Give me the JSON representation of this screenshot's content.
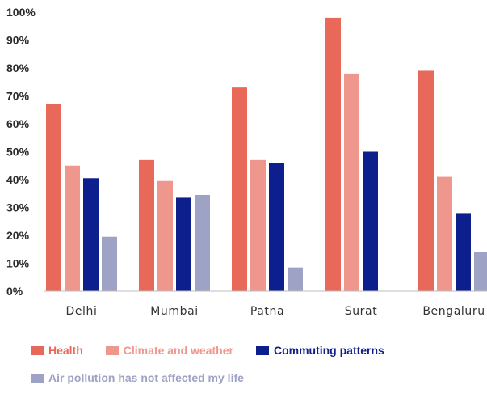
{
  "chart_data": {
    "type": "bar",
    "title": "",
    "xlabel": "",
    "ylabel": "",
    "ylim": [
      0,
      100
    ],
    "yticks": [
      "0%",
      "10%",
      "20%",
      "30%",
      "40%",
      "50%",
      "60%",
      "70%",
      "80%",
      "90%",
      "100%"
    ],
    "categories": [
      "Delhi",
      "Mumbai",
      "Patna",
      "Surat",
      "Bengaluru"
    ],
    "series": [
      {
        "name": "Health",
        "color": "#e8685a",
        "values": [
          67,
          47,
          73,
          98,
          79
        ]
      },
      {
        "name": "Climate and weather",
        "color": "#ef968d",
        "values": [
          45,
          39.5,
          47,
          78,
          41
        ]
      },
      {
        "name": "Commuting patterns",
        "color": "#0d1f8c",
        "values": [
          40.5,
          33.5,
          46,
          50,
          28
        ]
      },
      {
        "name": "Air pollution has not affected my life",
        "color": "#9ea2c4",
        "values": [
          19.5,
          34.5,
          8.5,
          0,
          14
        ]
      }
    ],
    "grid": false,
    "legend_position": "bottom"
  }
}
